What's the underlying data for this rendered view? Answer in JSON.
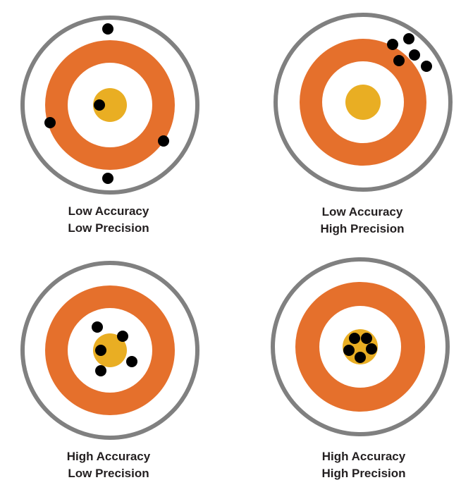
{
  "colors": {
    "outer_ring": "#808080",
    "orange_ring": "#e5702c",
    "bullseye": "#e9ae23",
    "shot": "#000000",
    "background": "#ffffff",
    "text": "#231f20"
  },
  "targets": [
    {
      "accuracy_label": "Low Accuracy",
      "precision_label": "Low Precision",
      "shot_count": 5
    },
    {
      "accuracy_label": "Low Accuracy",
      "precision_label": "High Precision",
      "shot_count": 5
    },
    {
      "accuracy_label": "High Accuracy",
      "precision_label": "Low Precision",
      "shot_count": 5
    },
    {
      "accuracy_label": "High Accuracy",
      "precision_label": "High Precision",
      "shot_count": 5
    }
  ]
}
